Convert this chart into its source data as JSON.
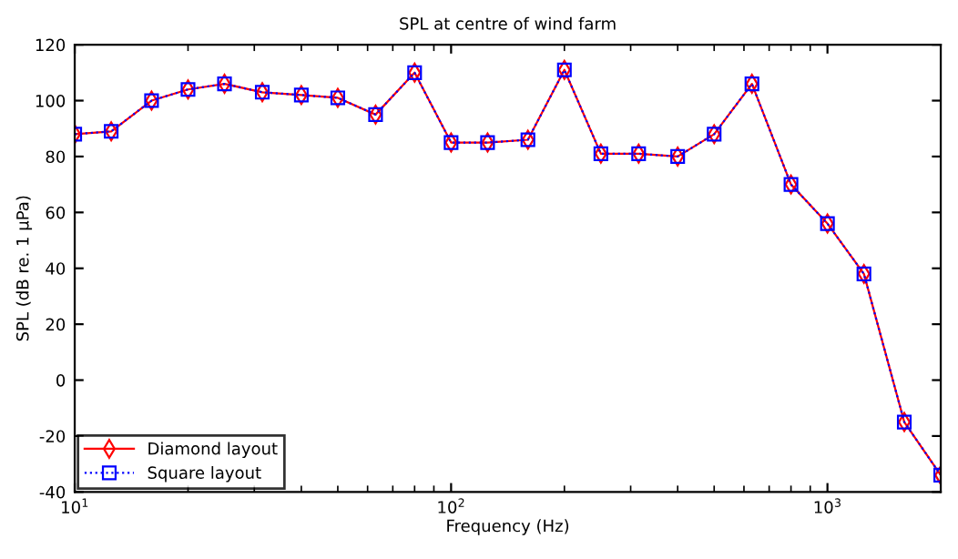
{
  "chart_data": {
    "type": "line",
    "title": "SPL at centre of wind farm",
    "xlabel": "Frequency (Hz)",
    "ylabel": "SPL (dB re. 1 μPa)",
    "x": [
      10,
      12.5,
      16,
      20,
      25,
      31.5,
      40,
      50,
      63,
      80,
      100,
      125,
      160,
      200,
      250,
      315,
      400,
      500,
      630,
      800,
      1000,
      1250,
      1600,
      2000
    ],
    "series": [
      {
        "name": "Diamond layout",
        "color": "#ff0000",
        "marker": "diamond",
        "line_style": "solid",
        "values": [
          88,
          89,
          100,
          104,
          106,
          103,
          102,
          101,
          95,
          110,
          85,
          85,
          86,
          111,
          81,
          81,
          80,
          88,
          106,
          70,
          56,
          38,
          -15,
          -34
        ]
      },
      {
        "name": "Square layout",
        "color": "#0000ff",
        "marker": "square",
        "line_style": "dotted",
        "values": [
          88,
          89,
          100,
          104,
          106,
          103,
          102,
          101,
          95,
          110,
          85,
          85,
          86,
          111,
          81,
          81,
          80,
          88,
          106,
          70,
          56,
          38,
          -15,
          -34
        ]
      }
    ],
    "log": "x",
    "xlim": [
      10,
      2000
    ],
    "xticks": [
      {
        "value": 10,
        "label": "10$^{1}$"
      },
      {
        "value": 100,
        "label": "10$^{2}$"
      },
      {
        "value": 1000,
        "label": "10$^{3}$"
      }
    ],
    "ylim": [
      -40,
      120
    ],
    "yticks": [
      -40,
      -20,
      0,
      20,
      40,
      60,
      80,
      100,
      120
    ],
    "grid": false,
    "legend": "bottom left"
  }
}
